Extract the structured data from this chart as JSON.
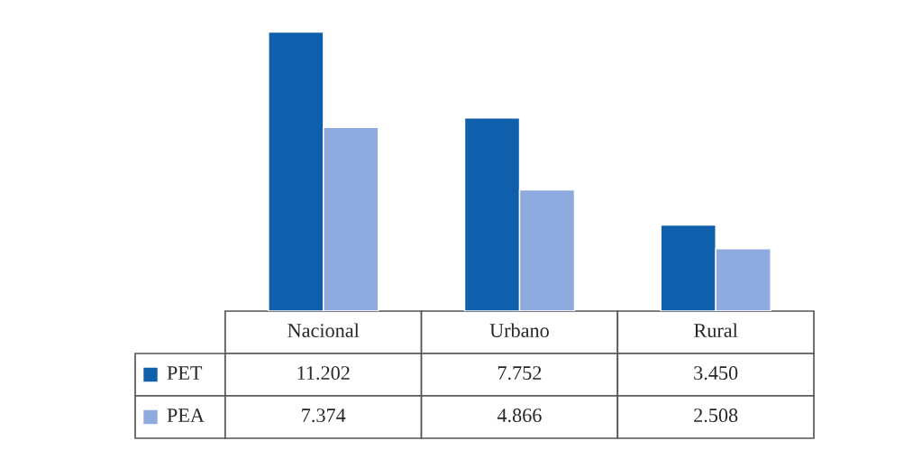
{
  "chart_data": {
    "type": "bar",
    "categories": [
      "Nacional",
      "Urbano",
      "Rural"
    ],
    "series": [
      {
        "name": "PET",
        "color": "#0f5fad",
        "values": [
          11.202,
          7.752,
          3.45
        ],
        "value_labels": [
          "11.202",
          "7.752",
          "3.450"
        ]
      },
      {
        "name": "PEA",
        "color": "#8eaadf",
        "values": [
          7.374,
          4.866,
          2.508
        ],
        "value_labels": [
          "7.374",
          "4.866",
          "2.508"
        ]
      }
    ],
    "legend": "left"
  }
}
